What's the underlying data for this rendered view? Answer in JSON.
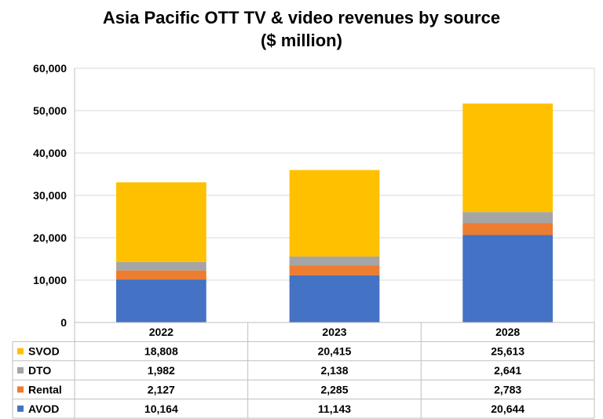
{
  "chart_data": {
    "type": "bar",
    "stacked": true,
    "title_line1": "Asia Pacific OTT TV & video revenues by source",
    "title_line2": "($ million)",
    "categories": [
      "2022",
      "2023",
      "2028"
    ],
    "series": [
      {
        "name": "AVOD",
        "values": [
          10164,
          11143,
          20644
        ],
        "color": "#4472C4"
      },
      {
        "name": "Rental",
        "values": [
          2127,
          2285,
          2783
        ],
        "color": "#ED7D31"
      },
      {
        "name": "DTO",
        "values": [
          1982,
          2138,
          2641
        ],
        "color": "#A5A5A5"
      },
      {
        "name": "SVOD",
        "values": [
          18808,
          20415,
          25613
        ],
        "color": "#FFC000"
      }
    ],
    "table_row_order": [
      "SVOD",
      "DTO",
      "Rental",
      "AVOD"
    ],
    "ylim": [
      0,
      60000
    ],
    "yticks": [
      0,
      10000,
      20000,
      30000,
      40000,
      50000,
      60000
    ],
    "ytick_labels": [
      "0",
      "10,000",
      "20,000",
      "30,000",
      "40,000",
      "50,000",
      "60,000"
    ],
    "value_labels": {
      "SVOD": [
        "18,808",
        "20,415",
        "25,613"
      ],
      "DTO": [
        "1,982",
        "2,138",
        "2,641"
      ],
      "Rental": [
        "2,127",
        "2,285",
        "2,783"
      ],
      "AVOD": [
        "10,164",
        "11,143",
        "20,644"
      ]
    },
    "grid": true,
    "legend": "data-table"
  }
}
